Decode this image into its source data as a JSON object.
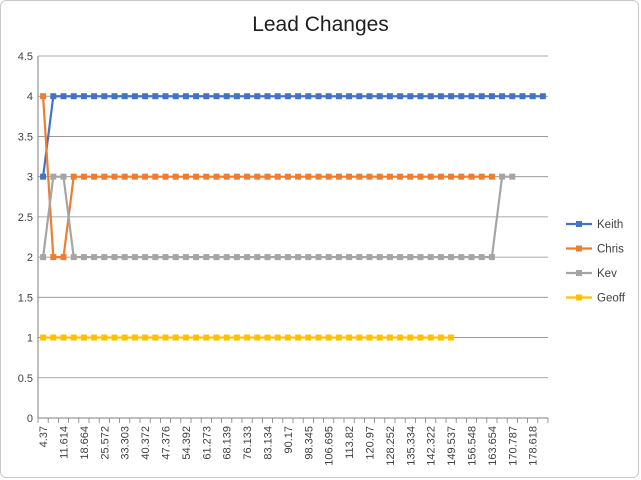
{
  "chart_data": {
    "type": "line",
    "title": "Lead Changes",
    "xlabel": "",
    "ylabel": "",
    "ylim": [
      0,
      4.5
    ],
    "yticks": [
      0,
      0.5,
      1,
      1.5,
      2,
      2.5,
      3,
      3.5,
      4,
      4.5
    ],
    "x_tick_labels": [
      "4.37",
      "11.614",
      "18.664",
      "25.572",
      "33.303",
      "40.372",
      "47.376",
      "54.392",
      "61.273",
      "68.139",
      "76.133",
      "83.134",
      "90.17",
      "98.345",
      "106.695",
      "113.82",
      "120.97",
      "128.252",
      "135.334",
      "142.322",
      "149.537",
      "156.548",
      "163.654",
      "170.787",
      "178.618"
    ],
    "num_points": 50,
    "grid": "horizontal",
    "legend_position": "right",
    "series": [
      {
        "name": "Keith",
        "color": "#4472C4",
        "values": [
          3,
          4,
          4,
          4,
          4,
          4,
          4,
          4,
          4,
          4,
          4,
          4,
          4,
          4,
          4,
          4,
          4,
          4,
          4,
          4,
          4,
          4,
          4,
          4,
          4,
          4,
          4,
          4,
          4,
          4,
          4,
          4,
          4,
          4,
          4,
          4,
          4,
          4,
          4,
          4,
          4,
          4,
          4,
          4,
          4,
          4,
          4,
          4,
          4,
          4
        ]
      },
      {
        "name": "Chris",
        "color": "#ED7D31",
        "values": [
          4,
          2,
          2,
          3,
          3,
          3,
          3,
          3,
          3,
          3,
          3,
          3,
          3,
          3,
          3,
          3,
          3,
          3,
          3,
          3,
          3,
          3,
          3,
          3,
          3,
          3,
          3,
          3,
          3,
          3,
          3,
          3,
          3,
          3,
          3,
          3,
          3,
          3,
          3,
          3,
          3,
          3,
          3,
          3,
          3,
          null,
          null,
          null,
          null,
          null
        ]
      },
      {
        "name": "Kev",
        "color": "#A5A5A5",
        "values": [
          2,
          3,
          3,
          2,
          2,
          2,
          2,
          2,
          2,
          2,
          2,
          2,
          2,
          2,
          2,
          2,
          2,
          2,
          2,
          2,
          2,
          2,
          2,
          2,
          2,
          2,
          2,
          2,
          2,
          2,
          2,
          2,
          2,
          2,
          2,
          2,
          2,
          2,
          2,
          2,
          2,
          2,
          2,
          2,
          2,
          3,
          3,
          null,
          null,
          null
        ]
      },
      {
        "name": "Geoff",
        "color": "#FFC000",
        "values": [
          1,
          1,
          1,
          1,
          1,
          1,
          1,
          1,
          1,
          1,
          1,
          1,
          1,
          1,
          1,
          1,
          1,
          1,
          1,
          1,
          1,
          1,
          1,
          1,
          1,
          1,
          1,
          1,
          1,
          1,
          1,
          1,
          1,
          1,
          1,
          1,
          1,
          1,
          1,
          1,
          1,
          null,
          null,
          null,
          null,
          null,
          null,
          null,
          null,
          null
        ]
      }
    ]
  }
}
